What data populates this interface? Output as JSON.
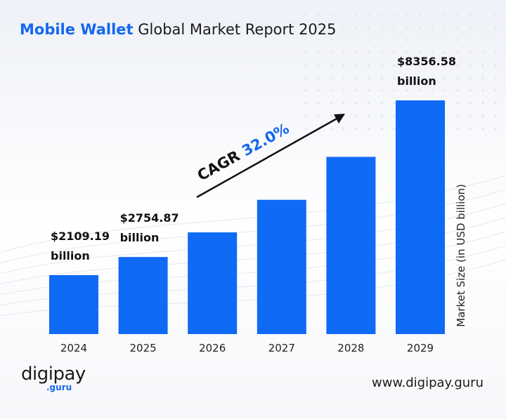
{
  "title": {
    "accent": "Mobile Wallet",
    "rest": " Global Market Report 2025"
  },
  "colors": {
    "bar": "#0f6af5",
    "accent": "#1467f0",
    "text": "#111111"
  },
  "chart_data": {
    "type": "bar",
    "categories": [
      "2024",
      "2025",
      "2026",
      "2027",
      "2028",
      "2029"
    ],
    "values": [
      2109.19,
      2754.87,
      3636.43,
      4800.09,
      6336.12,
      8356.58
    ],
    "data_labels": [
      {
        "index": 0,
        "line1": "$2109.19",
        "line2": "billion"
      },
      {
        "index": 1,
        "line1": "$2754.87",
        "line2": "billion"
      },
      {
        "index": 5,
        "line1": "$8356.58",
        "line2": "billion"
      }
    ],
    "ylabel": "Market Size (in USD billion)",
    "xlabel": "",
    "annotation": {
      "prefix": "CAGR ",
      "value": "32.0%"
    },
    "ylim": [
      0,
      9000
    ],
    "grid": false,
    "legend": "none"
  },
  "footer": {
    "logo_main": "digipay",
    "logo_sub": ".guru",
    "website": "www.digipay.guru"
  }
}
